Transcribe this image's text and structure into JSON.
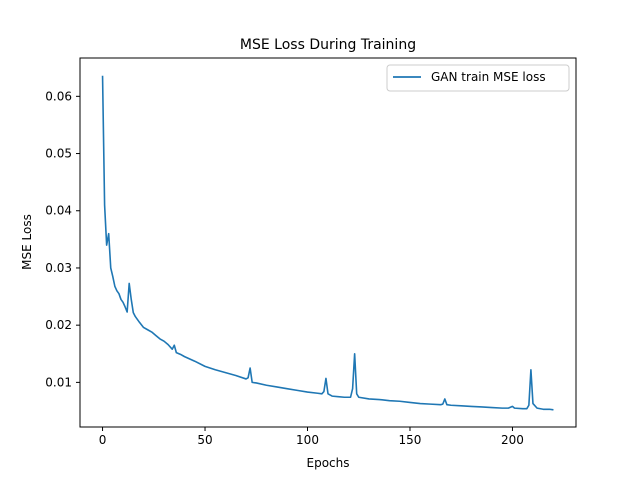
{
  "chart_data": {
    "type": "line",
    "title": "MSE Loss During Training",
    "xlabel": "Epochs",
    "ylabel": "MSE Loss",
    "xlim": [
      -11,
      231
    ],
    "ylim": [
      0.0022,
      0.0667
    ],
    "xticks": [
      0,
      50,
      100,
      150,
      200
    ],
    "xtick_labels": [
      "0",
      "50",
      "100",
      "150",
      "200"
    ],
    "yticks": [
      0.01,
      0.02,
      0.03,
      0.04,
      0.05,
      0.06
    ],
    "ytick_labels": [
      "0.01",
      "0.02",
      "0.03",
      "0.04",
      "0.05",
      "0.06"
    ],
    "grid": false,
    "legend_position": "top-right",
    "series": [
      {
        "name": "GAN train MSE loss",
        "color": "#1f77b4",
        "points": [
          [
            0,
            0.0636
          ],
          [
            1,
            0.041
          ],
          [
            2,
            0.034
          ],
          [
            3,
            0.036
          ],
          [
            4,
            0.03
          ],
          [
            5,
            0.0285
          ],
          [
            6,
            0.0268
          ],
          [
            7,
            0.026
          ],
          [
            8,
            0.0255
          ],
          [
            9,
            0.0245
          ],
          [
            10,
            0.024
          ],
          [
            11,
            0.0232
          ],
          [
            12,
            0.0223
          ],
          [
            13,
            0.0273
          ],
          [
            14,
            0.0245
          ],
          [
            15,
            0.0222
          ],
          [
            16,
            0.0215
          ],
          [
            18,
            0.0205
          ],
          [
            20,
            0.0196
          ],
          [
            22,
            0.0192
          ],
          [
            24,
            0.0188
          ],
          [
            26,
            0.0182
          ],
          [
            28,
            0.0176
          ],
          [
            30,
            0.0172
          ],
          [
            32,
            0.0166
          ],
          [
            34,
            0.0158
          ],
          [
            35,
            0.0165
          ],
          [
            36,
            0.0152
          ],
          [
            38,
            0.0149
          ],
          [
            40,
            0.0145
          ],
          [
            45,
            0.0137
          ],
          [
            50,
            0.0128
          ],
          [
            55,
            0.0122
          ],
          [
            60,
            0.0117
          ],
          [
            65,
            0.0112
          ],
          [
            70,
            0.0106
          ],
          [
            71,
            0.0108
          ],
          [
            72,
            0.0125
          ],
          [
            73,
            0.01
          ],
          [
            75,
            0.0099
          ],
          [
            80,
            0.0095
          ],
          [
            85,
            0.0092
          ],
          [
            90,
            0.0089
          ],
          [
            95,
            0.0086
          ],
          [
            100,
            0.0083
          ],
          [
            105,
            0.0081
          ],
          [
            107,
            0.008
          ],
          [
            108,
            0.0084
          ],
          [
            109,
            0.0107
          ],
          [
            110,
            0.008
          ],
          [
            112,
            0.0076
          ],
          [
            115,
            0.0075
          ],
          [
            118,
            0.0074
          ],
          [
            121,
            0.0074
          ],
          [
            122,
            0.0089
          ],
          [
            123,
            0.015
          ],
          [
            124,
            0.008
          ],
          [
            125,
            0.0074
          ],
          [
            130,
            0.0071
          ],
          [
            135,
            0.007
          ],
          [
            140,
            0.0068
          ],
          [
            145,
            0.0067
          ],
          [
            150,
            0.0065
          ],
          [
            155,
            0.0063
          ],
          [
            160,
            0.0062
          ],
          [
            165,
            0.0061
          ],
          [
            166,
            0.0062
          ],
          [
            167,
            0.0071
          ],
          [
            168,
            0.0061
          ],
          [
            170,
            0.006
          ],
          [
            175,
            0.0059
          ],
          [
            180,
            0.0058
          ],
          [
            185,
            0.0057
          ],
          [
            190,
            0.0056
          ],
          [
            195,
            0.0055
          ],
          [
            198,
            0.0055
          ],
          [
            200,
            0.0058
          ],
          [
            201,
            0.0055
          ],
          [
            205,
            0.0054
          ],
          [
            207,
            0.0054
          ],
          [
            208,
            0.006
          ],
          [
            209,
            0.0122
          ],
          [
            210,
            0.0063
          ],
          [
            212,
            0.0055
          ],
          [
            215,
            0.0053
          ],
          [
            218,
            0.0053
          ],
          [
            220,
            0.0052
          ]
        ]
      }
    ]
  }
}
